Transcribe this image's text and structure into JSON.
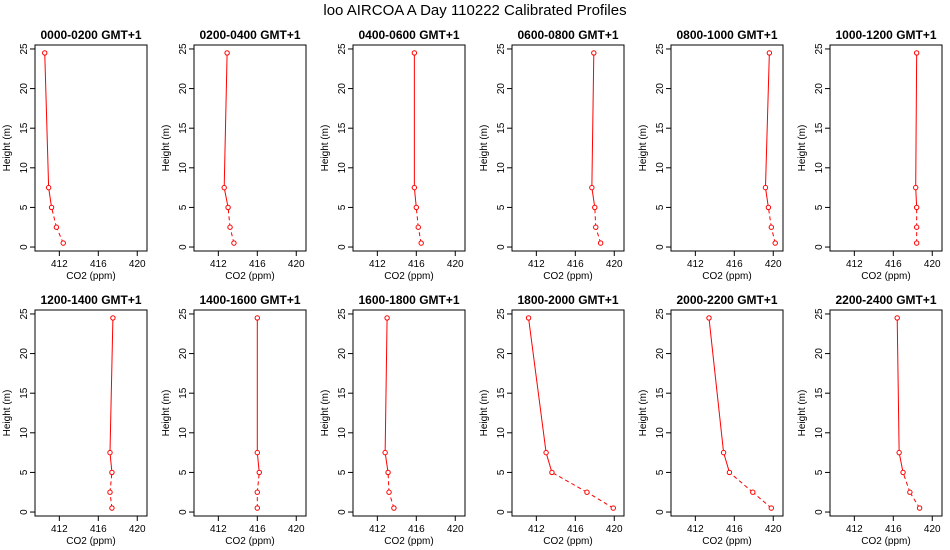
{
  "title": "loo AIRCOA A  Day 110222  Calibrated Profiles",
  "colors": {
    "series": "#ff0000",
    "axis": "#000000",
    "background": "#ffffff"
  },
  "chart_data": [
    {
      "type": "line",
      "title": "0000-0200 GMT+1",
      "xlabel": "CO2 (ppm)",
      "ylabel": "Height (m)",
      "xlim": [
        409.5,
        421
      ],
      "ylim": [
        -0.5,
        25.5
      ],
      "xticks": [
        412,
        416,
        420
      ],
      "yticks": [
        0,
        5,
        10,
        15,
        20,
        25
      ],
      "grid": false,
      "points": [
        {
          "x": 412.4,
          "y": 0.5
        },
        {
          "x": 411.7,
          "y": 2.5
        },
        {
          "x": 411.2,
          "y": 5
        },
        {
          "x": 410.9,
          "y": 7.5
        },
        {
          "x": 410.5,
          "y": 24.5
        }
      ]
    },
    {
      "type": "line",
      "title": "0200-0400 GMT+1",
      "xlabel": "CO2 (ppm)",
      "ylabel": "Height (m)",
      "xlim": [
        409.5,
        421
      ],
      "ylim": [
        -0.5,
        25.5
      ],
      "xticks": [
        412,
        416,
        420
      ],
      "yticks": [
        0,
        5,
        10,
        15,
        20,
        25
      ],
      "grid": false,
      "points": [
        {
          "x": 413.6,
          "y": 0.5
        },
        {
          "x": 413.2,
          "y": 2.5
        },
        {
          "x": 413.0,
          "y": 5
        },
        {
          "x": 412.6,
          "y": 7.5
        },
        {
          "x": 412.9,
          "y": 24.5
        }
      ]
    },
    {
      "type": "line",
      "title": "0400-0600 GMT+1",
      "xlabel": "CO2 (ppm)",
      "ylabel": "Height (m)",
      "xlim": [
        409.5,
        421
      ],
      "ylim": [
        -0.5,
        25.5
      ],
      "xticks": [
        412,
        416,
        420
      ],
      "yticks": [
        0,
        5,
        10,
        15,
        20,
        25
      ],
      "grid": false,
      "points": [
        {
          "x": 416.5,
          "y": 0.5
        },
        {
          "x": 416.2,
          "y": 2.5
        },
        {
          "x": 416.0,
          "y": 5
        },
        {
          "x": 415.8,
          "y": 7.5
        },
        {
          "x": 415.8,
          "y": 24.5
        }
      ]
    },
    {
      "type": "line",
      "title": "0600-0800 GMT+1",
      "xlabel": "CO2 (ppm)",
      "ylabel": "Height (m)",
      "xlim": [
        409.5,
        421
      ],
      "ylim": [
        -0.5,
        25.5
      ],
      "xticks": [
        412,
        416,
        420
      ],
      "yticks": [
        0,
        5,
        10,
        15,
        20,
        25
      ],
      "grid": false,
      "points": [
        {
          "x": 418.6,
          "y": 0.5
        },
        {
          "x": 418.1,
          "y": 2.5
        },
        {
          "x": 418.0,
          "y": 5
        },
        {
          "x": 417.7,
          "y": 7.5
        },
        {
          "x": 417.9,
          "y": 24.5
        }
      ]
    },
    {
      "type": "line",
      "title": "0800-1000 GMT+1",
      "xlabel": "CO2 (ppm)",
      "ylabel": "Height (m)",
      "xlim": [
        409.5,
        421
      ],
      "ylim": [
        -0.5,
        25.5
      ],
      "xticks": [
        412,
        416,
        420
      ],
      "yticks": [
        0,
        5,
        10,
        15,
        20,
        25
      ],
      "grid": false,
      "points": [
        {
          "x": 420.2,
          "y": 0.5
        },
        {
          "x": 419.8,
          "y": 2.5
        },
        {
          "x": 419.5,
          "y": 5
        },
        {
          "x": 419.2,
          "y": 7.5
        },
        {
          "x": 419.6,
          "y": 24.5
        }
      ]
    },
    {
      "type": "line",
      "title": "1000-1200 GMT+1",
      "xlabel": "CO2 (ppm)",
      "ylabel": "Height (m)",
      "xlim": [
        409.5,
        421
      ],
      "ylim": [
        -0.5,
        25.5
      ],
      "xticks": [
        412,
        416,
        420
      ],
      "yticks": [
        0,
        5,
        10,
        15,
        20,
        25
      ],
      "grid": false,
      "points": [
        {
          "x": 418.4,
          "y": 0.5
        },
        {
          "x": 418.4,
          "y": 2.5
        },
        {
          "x": 418.4,
          "y": 5
        },
        {
          "x": 418.3,
          "y": 7.5
        },
        {
          "x": 418.4,
          "y": 24.5
        }
      ]
    },
    {
      "type": "line",
      "title": "1200-1400 GMT+1",
      "xlabel": "CO2 (ppm)",
      "ylabel": "Height (m)",
      "xlim": [
        409.5,
        421
      ],
      "ylim": [
        -0.5,
        25.5
      ],
      "xticks": [
        412,
        416,
        420
      ],
      "yticks": [
        0,
        5,
        10,
        15,
        20,
        25
      ],
      "grid": false,
      "points": [
        {
          "x": 417.4,
          "y": 0.5
        },
        {
          "x": 417.2,
          "y": 2.5
        },
        {
          "x": 417.4,
          "y": 5
        },
        {
          "x": 417.2,
          "y": 7.5
        },
        {
          "x": 417.5,
          "y": 24.5
        }
      ]
    },
    {
      "type": "line",
      "title": "1400-1600 GMT+1",
      "xlabel": "CO2 (ppm)",
      "ylabel": "Height (m)",
      "xlim": [
        409.5,
        421
      ],
      "ylim": [
        -0.5,
        25.5
      ],
      "xticks": [
        412,
        416,
        420
      ],
      "yticks": [
        0,
        5,
        10,
        15,
        20,
        25
      ],
      "grid": false,
      "points": [
        {
          "x": 416.0,
          "y": 0.5
        },
        {
          "x": 416.0,
          "y": 2.5
        },
        {
          "x": 416.2,
          "y": 5
        },
        {
          "x": 416.0,
          "y": 7.5
        },
        {
          "x": 416.0,
          "y": 24.5
        }
      ]
    },
    {
      "type": "line",
      "title": "1600-1800 GMT+1",
      "xlabel": "CO2 (ppm)",
      "ylabel": "Height (m)",
      "xlim": [
        409.5,
        421
      ],
      "ylim": [
        -0.5,
        25.5
      ],
      "xticks": [
        412,
        416,
        420
      ],
      "yticks": [
        0,
        5,
        10,
        15,
        20,
        25
      ],
      "grid": false,
      "points": [
        {
          "x": 413.7,
          "y": 0.5
        },
        {
          "x": 413.2,
          "y": 2.5
        },
        {
          "x": 413.1,
          "y": 5
        },
        {
          "x": 412.8,
          "y": 7.5
        },
        {
          "x": 413.0,
          "y": 24.5
        }
      ]
    },
    {
      "type": "line",
      "title": "1800-2000 GMT+1",
      "xlabel": "CO2 (ppm)",
      "ylabel": "Height (m)",
      "xlim": [
        409.5,
        421
      ],
      "ylim": [
        -0.5,
        25.5
      ],
      "xticks": [
        412,
        416,
        420
      ],
      "yticks": [
        0,
        5,
        10,
        15,
        20,
        25
      ],
      "grid": false,
      "points": [
        {
          "x": 419.9,
          "y": 0.5
        },
        {
          "x": 417.2,
          "y": 2.5
        },
        {
          "x": 413.6,
          "y": 5
        },
        {
          "x": 413.0,
          "y": 7.5
        },
        {
          "x": 411.2,
          "y": 24.5
        }
      ]
    },
    {
      "type": "line",
      "title": "2000-2200 GMT+1",
      "xlabel": "CO2 (ppm)",
      "ylabel": "Height (m)",
      "xlim": [
        409.5,
        421
      ],
      "ylim": [
        -0.5,
        25.5
      ],
      "xticks": [
        412,
        416,
        420
      ],
      "yticks": [
        0,
        5,
        10,
        15,
        20,
        25
      ],
      "grid": false,
      "points": [
        {
          "x": 419.8,
          "y": 0.5
        },
        {
          "x": 417.9,
          "y": 2.5
        },
        {
          "x": 415.5,
          "y": 5
        },
        {
          "x": 414.9,
          "y": 7.5
        },
        {
          "x": 413.4,
          "y": 24.5
        }
      ]
    },
    {
      "type": "line",
      "title": "2200-2400 GMT+1",
      "xlabel": "CO2 (ppm)",
      "ylabel": "Height (m)",
      "xlim": [
        409.5,
        421
      ],
      "ylim": [
        -0.5,
        25.5
      ],
      "xticks": [
        412,
        416,
        420
      ],
      "yticks": [
        0,
        5,
        10,
        15,
        20,
        25
      ],
      "grid": false,
      "points": [
        {
          "x": 418.7,
          "y": 0.5
        },
        {
          "x": 417.7,
          "y": 2.5
        },
        {
          "x": 417.0,
          "y": 5
        },
        {
          "x": 416.6,
          "y": 7.5
        },
        {
          "x": 416.4,
          "y": 24.5
        }
      ]
    }
  ]
}
